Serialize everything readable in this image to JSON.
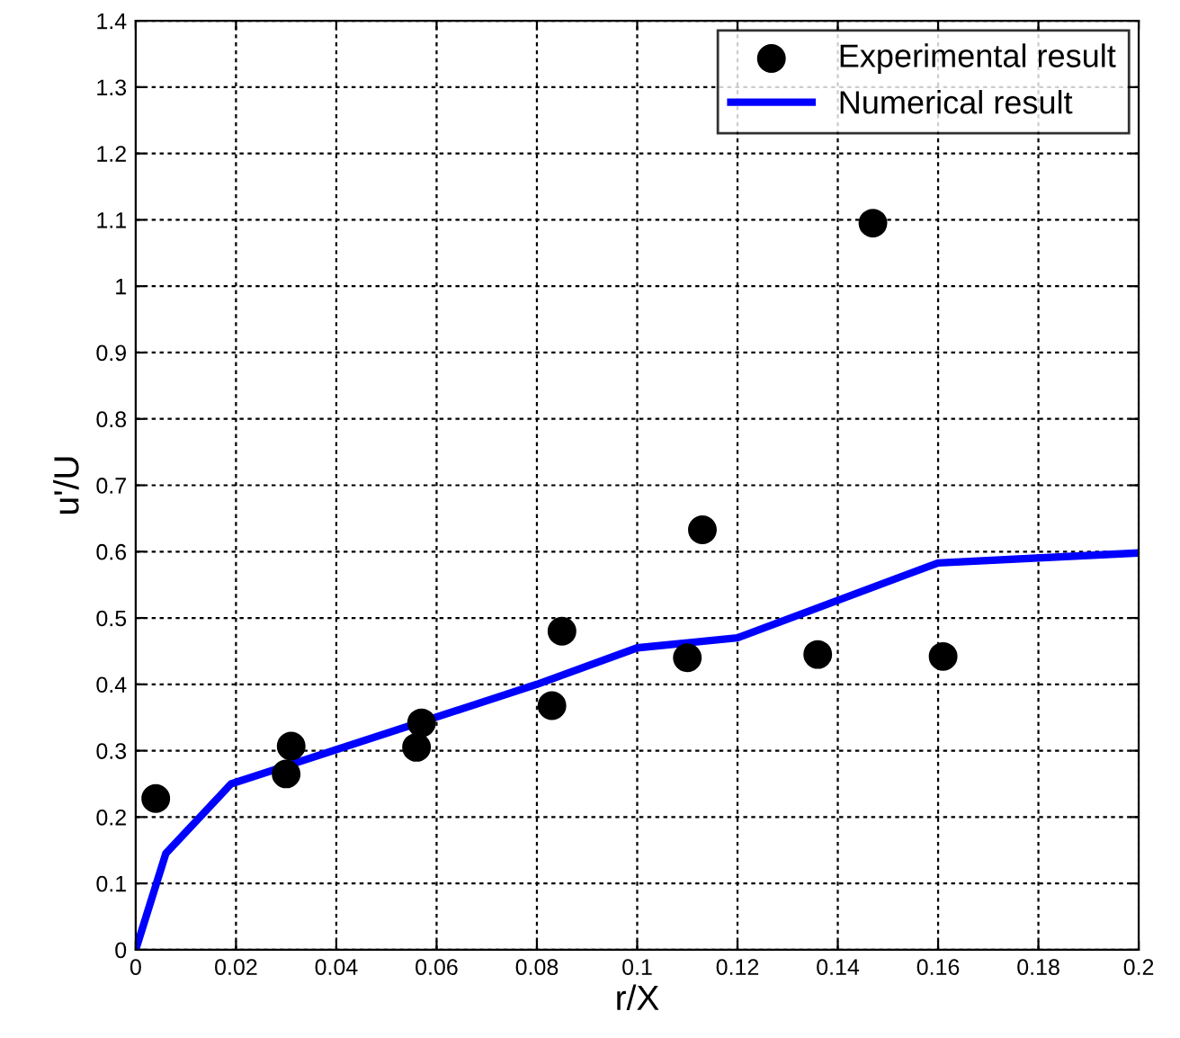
{
  "chart_data": {
    "type": "scatter",
    "xlabel": "r/X",
    "ylabel": "u'/U",
    "xlim": [
      0,
      0.2
    ],
    "ylim": [
      0,
      1.4
    ],
    "xticks": [
      0,
      0.02,
      0.04,
      0.06,
      0.08,
      0.1,
      0.12,
      0.14,
      0.16,
      0.18,
      0.2
    ],
    "yticks": [
      0,
      0.1,
      0.2,
      0.3,
      0.4,
      0.5,
      0.6,
      0.7,
      0.8,
      0.9,
      1,
      1.1,
      1.2,
      1.3,
      1.4
    ],
    "grid": true,
    "legend": "top right",
    "series": [
      {
        "name": "Experimental result",
        "marker": "circle",
        "color": "#000000",
        "x": [
          0.004,
          0.03,
          0.031,
          0.056,
          0.057,
          0.083,
          0.085,
          0.11,
          0.113,
          0.136,
          0.147,
          0.161
        ],
        "values": [
          0.228,
          0.265,
          0.307,
          0.305,
          0.342,
          0.368,
          0.48,
          0.44,
          0.633,
          0.445,
          1.095,
          0.442
        ]
      },
      {
        "name": "Numerical result",
        "type": "line",
        "line_style": "solid",
        "color": "#0000ff",
        "x": [
          0,
          0.006,
          0.019,
          0.08,
          0.1,
          0.12,
          0.16,
          0.2
        ],
        "values": [
          0,
          0.145,
          0.25,
          0.4,
          0.455,
          0.47,
          0.583,
          0.598
        ]
      }
    ]
  }
}
